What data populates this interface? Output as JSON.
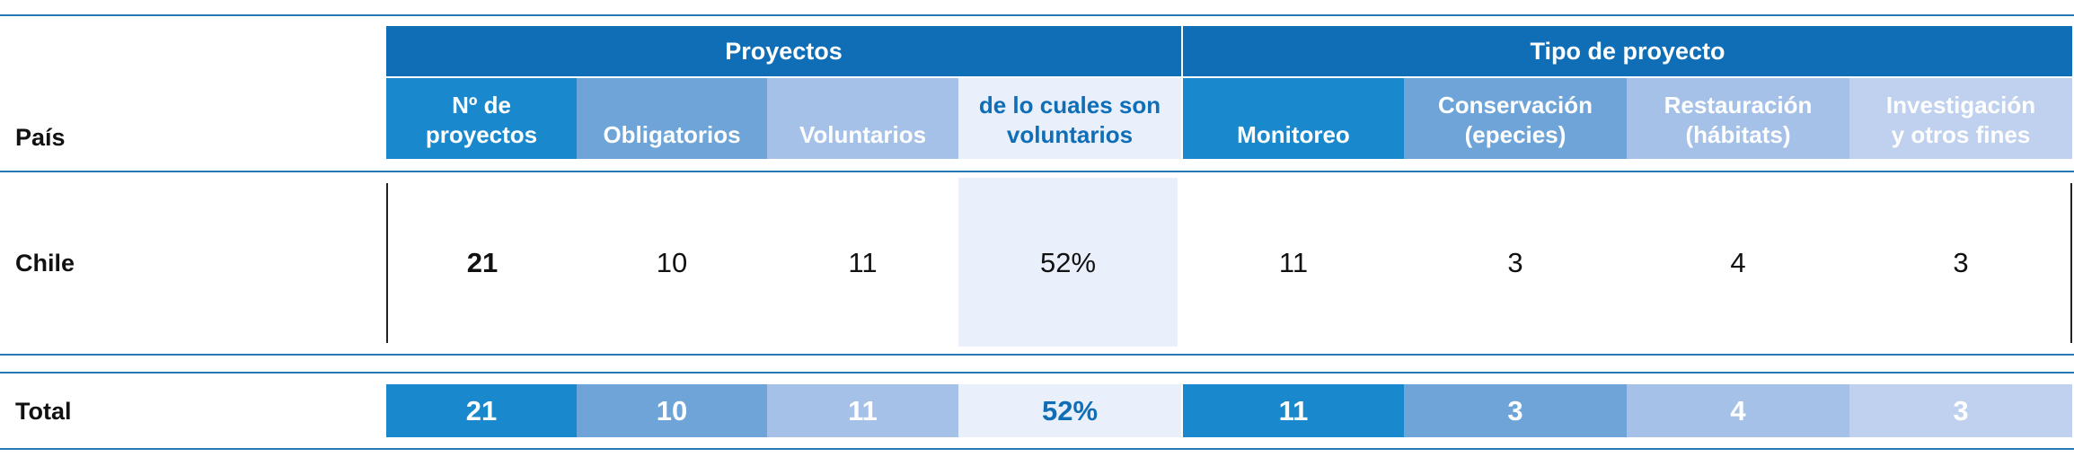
{
  "colors": {
    "group_header": "#0f6eb6",
    "n_proyectos": "#1a88cc",
    "obligatorios": "#6ea4d8",
    "voluntarios": "#a6c1e8",
    "pct_voluntarios": "#eaf0fb",
    "monitoreo": "#1a88cc",
    "conservacion": "#6ea4d8",
    "restauracion": "#a6c1e8",
    "investigacion": "#bfd1ee",
    "rule_line": "#2a78b4"
  },
  "header": {
    "pais_label": "País",
    "group_proyectos": "Proyectos",
    "group_tipo": "Tipo de proyecto",
    "columns": [
      "Nº de proyectos",
      "Obligatorios",
      "Voluntarios",
      "de lo cuales son voluntarios",
      "Monitoreo",
      "Conservación (epecies)",
      "Restauración (hábitats)",
      "Investigación y otros fines"
    ]
  },
  "rows": [
    {
      "pais": "Chile",
      "values": [
        "21",
        "10",
        "11",
        "52%",
        "11",
        "3",
        "4",
        "3"
      ]
    }
  ],
  "total": {
    "label": "Total",
    "values": [
      "21",
      "10",
      "11",
      "52%",
      "11",
      "3",
      "4",
      "3"
    ]
  }
}
